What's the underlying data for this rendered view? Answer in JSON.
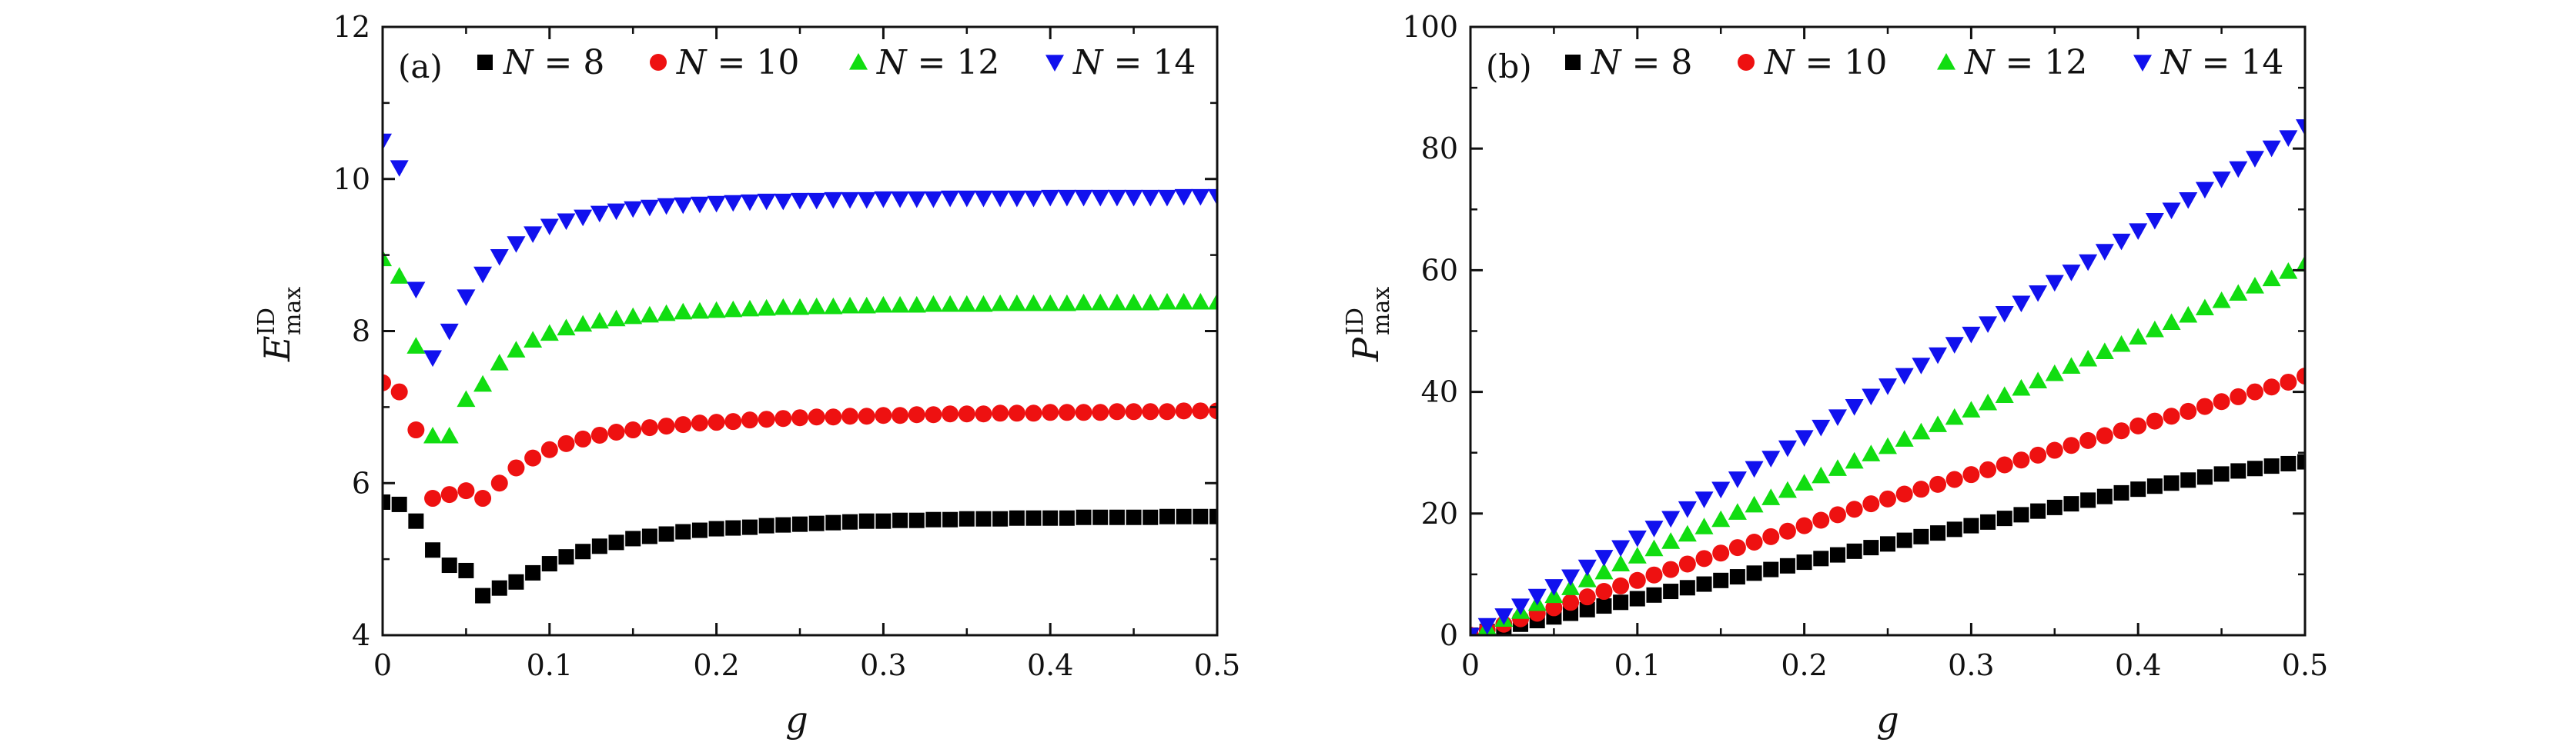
{
  "chart_data": [
    {
      "type": "scatter",
      "panel_label": "(a)",
      "xlabel": "g",
      "ylabel": {
        "base": "E",
        "sup": "ID",
        "sub": "max"
      },
      "xlim": [
        0,
        0.5
      ],
      "ylim": [
        4,
        12
      ],
      "xticks": [
        "0",
        "0.1",
        "0.2",
        "0.3",
        "0.4",
        "0.5"
      ],
      "yticks": [
        "4",
        "6",
        "8",
        "10",
        "12"
      ],
      "legend_position": "top",
      "series": [
        {
          "name": "N = 8",
          "marker": "square",
          "color": "#000000",
          "x": [
            0,
            0.01,
            0.02,
            0.03,
            0.04,
            0.05,
            0.06,
            0.07,
            0.08,
            0.09,
            0.1,
            0.11,
            0.12,
            0.13,
            0.14,
            0.15,
            0.16,
            0.17,
            0.18,
            0.19,
            0.2,
            0.21,
            0.22,
            0.23,
            0.24,
            0.25,
            0.26,
            0.27,
            0.28,
            0.29,
            0.3,
            0.31,
            0.32,
            0.33,
            0.34,
            0.35,
            0.36,
            0.37,
            0.38,
            0.39,
            0.4,
            0.41,
            0.42,
            0.43,
            0.44,
            0.45,
            0.46,
            0.47,
            0.48,
            0.49,
            0.5
          ],
          "y": [
            5.75,
            5.72,
            5.5,
            5.12,
            4.92,
            4.85,
            4.52,
            4.62,
            4.7,
            4.82,
            4.94,
            5.03,
            5.1,
            5.17,
            5.22,
            5.27,
            5.3,
            5.33,
            5.36,
            5.38,
            5.4,
            5.41,
            5.42,
            5.44,
            5.45,
            5.46,
            5.47,
            5.48,
            5.49,
            5.5,
            5.5,
            5.51,
            5.51,
            5.52,
            5.52,
            5.53,
            5.53,
            5.53,
            5.54,
            5.54,
            5.54,
            5.54,
            5.55,
            5.55,
            5.55,
            5.55,
            5.55,
            5.56,
            5.56,
            5.56,
            5.56
          ]
        },
        {
          "name": "N = 10",
          "marker": "circle",
          "color": "#ee1111",
          "x": [
            0,
            0.01,
            0.02,
            0.03,
            0.04,
            0.05,
            0.06,
            0.07,
            0.08,
            0.09,
            0.1,
            0.11,
            0.12,
            0.13,
            0.14,
            0.15,
            0.16,
            0.17,
            0.18,
            0.19,
            0.2,
            0.21,
            0.22,
            0.23,
            0.24,
            0.25,
            0.26,
            0.27,
            0.28,
            0.29,
            0.3,
            0.31,
            0.32,
            0.33,
            0.34,
            0.35,
            0.36,
            0.37,
            0.38,
            0.39,
            0.4,
            0.41,
            0.42,
            0.43,
            0.44,
            0.45,
            0.46,
            0.47,
            0.48,
            0.49,
            0.5
          ],
          "y": [
            7.32,
            7.2,
            6.7,
            5.8,
            5.85,
            5.9,
            5.8,
            6.0,
            6.2,
            6.33,
            6.44,
            6.52,
            6.58,
            6.63,
            6.67,
            6.7,
            6.73,
            6.75,
            6.77,
            6.79,
            6.8,
            6.81,
            6.83,
            6.84,
            6.85,
            6.86,
            6.87,
            6.87,
            6.88,
            6.88,
            6.89,
            6.89,
            6.9,
            6.9,
            6.91,
            6.91,
            6.91,
            6.92,
            6.92,
            6.92,
            6.93,
            6.93,
            6.93,
            6.93,
            6.94,
            6.94,
            6.94,
            6.94,
            6.95,
            6.95,
            6.95
          ]
        },
        {
          "name": "N = 12",
          "marker": "triangle-up",
          "color": "#11dd11",
          "x": [
            0,
            0.01,
            0.02,
            0.03,
            0.04,
            0.05,
            0.06,
            0.07,
            0.08,
            0.09,
            0.1,
            0.11,
            0.12,
            0.13,
            0.14,
            0.15,
            0.16,
            0.17,
            0.18,
            0.19,
            0.2,
            0.21,
            0.22,
            0.23,
            0.24,
            0.25,
            0.26,
            0.27,
            0.28,
            0.29,
            0.3,
            0.31,
            0.32,
            0.33,
            0.34,
            0.35,
            0.36,
            0.37,
            0.38,
            0.39,
            0.4,
            0.41,
            0.42,
            0.43,
            0.44,
            0.45,
            0.46,
            0.47,
            0.48,
            0.49,
            0.5
          ],
          "y": [
            8.95,
            8.72,
            7.8,
            6.62,
            6.62,
            7.1,
            7.3,
            7.58,
            7.75,
            7.88,
            7.97,
            8.04,
            8.09,
            8.13,
            8.16,
            8.19,
            8.21,
            8.23,
            8.25,
            8.26,
            8.27,
            8.28,
            8.29,
            8.3,
            8.31,
            8.31,
            8.32,
            8.32,
            8.33,
            8.33,
            8.34,
            8.34,
            8.34,
            8.35,
            8.35,
            8.35,
            8.35,
            8.36,
            8.36,
            8.36,
            8.36,
            8.36,
            8.37,
            8.37,
            8.37,
            8.37,
            8.37,
            8.38,
            8.38,
            8.38,
            8.38
          ]
        },
        {
          "name": "N = 14",
          "marker": "triangle-down",
          "color": "#1111ee",
          "x": [
            0,
            0.01,
            0.02,
            0.03,
            0.04,
            0.05,
            0.06,
            0.07,
            0.08,
            0.09,
            0.1,
            0.11,
            0.12,
            0.13,
            0.14,
            0.15,
            0.16,
            0.17,
            0.18,
            0.19,
            0.2,
            0.21,
            0.22,
            0.23,
            0.24,
            0.25,
            0.26,
            0.27,
            0.28,
            0.29,
            0.3,
            0.31,
            0.32,
            0.33,
            0.34,
            0.35,
            0.36,
            0.37,
            0.38,
            0.39,
            0.4,
            0.41,
            0.42,
            0.43,
            0.44,
            0.45,
            0.46,
            0.47,
            0.48,
            0.49,
            0.5
          ],
          "y": [
            10.5,
            10.15,
            8.55,
            7.65,
            8.0,
            8.45,
            8.75,
            8.98,
            9.15,
            9.28,
            9.38,
            9.45,
            9.5,
            9.55,
            9.58,
            9.61,
            9.63,
            9.65,
            9.66,
            9.67,
            9.68,
            9.69,
            9.7,
            9.71,
            9.71,
            9.72,
            9.72,
            9.73,
            9.73,
            9.73,
            9.74,
            9.74,
            9.74,
            9.74,
            9.75,
            9.75,
            9.75,
            9.75,
            9.75,
            9.75,
            9.76,
            9.76,
            9.76,
            9.76,
            9.76,
            9.76,
            9.76,
            9.76,
            9.77,
            9.77,
            9.77
          ]
        }
      ]
    },
    {
      "type": "scatter",
      "panel_label": "(b)",
      "xlabel": "g",
      "ylabel": {
        "base": "P",
        "sup": "ID",
        "sub": "max"
      },
      "xlim": [
        0,
        0.5
      ],
      "ylim": [
        0,
        100
      ],
      "xticks": [
        "0",
        "0.1",
        "0.2",
        "0.3",
        "0.4",
        "0.5"
      ],
      "yticks": [
        "0",
        "20",
        "40",
        "60",
        "80",
        "100"
      ],
      "legend_position": "top",
      "series": [
        {
          "name": "N = 8",
          "marker": "square",
          "color": "#000000",
          "x": [
            0,
            0.01,
            0.02,
            0.03,
            0.04,
            0.05,
            0.06,
            0.07,
            0.08,
            0.09,
            0.1,
            0.11,
            0.12,
            0.13,
            0.14,
            0.15,
            0.16,
            0.17,
            0.18,
            0.19,
            0.2,
            0.21,
            0.22,
            0.23,
            0.24,
            0.25,
            0.26,
            0.27,
            0.28,
            0.29,
            0.3,
            0.31,
            0.32,
            0.33,
            0.34,
            0.35,
            0.36,
            0.37,
            0.38,
            0.39,
            0.4,
            0.41,
            0.42,
            0.43,
            0.44,
            0.45,
            0.46,
            0.47,
            0.48,
            0.49,
            0.5
          ],
          "y": [
            0,
            0.6,
            1.2,
            1.8,
            2.4,
            3.0,
            3.6,
            4.2,
            4.8,
            5.4,
            6.0,
            6.6,
            7.2,
            7.8,
            8.4,
            9.0,
            9.6,
            10.2,
            10.8,
            11.4,
            12.0,
            12.6,
            13.2,
            13.8,
            14.4,
            15.0,
            15.6,
            16.2,
            16.8,
            17.4,
            18.0,
            18.6,
            19.2,
            19.8,
            20.4,
            21.0,
            21.6,
            22.2,
            22.8,
            23.4,
            24.0,
            24.5,
            25.0,
            25.5,
            26.0,
            26.5,
            27.0,
            27.4,
            27.8,
            28.2,
            28.5
          ]
        },
        {
          "name": "N = 10",
          "marker": "circle",
          "color": "#ee1111",
          "x": [
            0,
            0.01,
            0.02,
            0.03,
            0.04,
            0.05,
            0.06,
            0.07,
            0.08,
            0.09,
            0.1,
            0.11,
            0.12,
            0.13,
            0.14,
            0.15,
            0.16,
            0.17,
            0.18,
            0.19,
            0.2,
            0.21,
            0.22,
            0.23,
            0.24,
            0.25,
            0.26,
            0.27,
            0.28,
            0.29,
            0.3,
            0.31,
            0.32,
            0.33,
            0.34,
            0.35,
            0.36,
            0.37,
            0.38,
            0.39,
            0.4,
            0.41,
            0.42,
            0.43,
            0.44,
            0.45,
            0.46,
            0.47,
            0.48,
            0.49,
            0.5
          ],
          "y": [
            0,
            0.9,
            1.8,
            2.7,
            3.6,
            4.5,
            5.4,
            6.3,
            7.2,
            8.1,
            9.0,
            9.9,
            10.8,
            11.7,
            12.6,
            13.5,
            14.4,
            15.3,
            16.2,
            17.1,
            18.0,
            18.9,
            19.8,
            20.7,
            21.6,
            22.4,
            23.2,
            24.0,
            24.8,
            25.6,
            26.4,
            27.2,
            28.0,
            28.8,
            29.6,
            30.4,
            31.2,
            32.0,
            32.8,
            33.6,
            34.4,
            35.2,
            36.0,
            36.8,
            37.6,
            38.4,
            39.2,
            40.0,
            40.8,
            41.6,
            42.6
          ]
        },
        {
          "name": "N = 12",
          "marker": "triangle-up",
          "color": "#11dd11",
          "x": [
            0,
            0.01,
            0.02,
            0.03,
            0.04,
            0.05,
            0.06,
            0.07,
            0.08,
            0.09,
            0.1,
            0.11,
            0.12,
            0.13,
            0.14,
            0.15,
            0.16,
            0.17,
            0.18,
            0.19,
            0.2,
            0.21,
            0.22,
            0.23,
            0.24,
            0.25,
            0.26,
            0.27,
            0.28,
            0.29,
            0.3,
            0.31,
            0.32,
            0.33,
            0.34,
            0.35,
            0.36,
            0.37,
            0.38,
            0.39,
            0.4,
            0.41,
            0.42,
            0.43,
            0.44,
            0.45,
            0.46,
            0.47,
            0.48,
            0.49,
            0.5
          ],
          "y": [
            0,
            1.3,
            2.6,
            3.9,
            5.2,
            6.5,
            7.8,
            9.1,
            10.4,
            11.7,
            13.0,
            14.2,
            15.4,
            16.6,
            17.8,
            19.0,
            20.2,
            21.4,
            22.6,
            23.8,
            25.0,
            26.2,
            27.4,
            28.6,
            29.8,
            31.0,
            32.2,
            33.4,
            34.6,
            35.8,
            37.0,
            38.2,
            39.4,
            40.6,
            41.8,
            43.0,
            44.2,
            45.4,
            46.6,
            47.8,
            49.0,
            50.2,
            51.4,
            52.6,
            53.8,
            55.0,
            56.2,
            57.4,
            58.6,
            59.8,
            61.0
          ]
        },
        {
          "name": "N = 14",
          "marker": "triangle-down",
          "color": "#1111ee",
          "x": [
            0,
            0.01,
            0.02,
            0.03,
            0.04,
            0.05,
            0.06,
            0.07,
            0.08,
            0.09,
            0.1,
            0.11,
            0.12,
            0.13,
            0.14,
            0.15,
            0.16,
            0.17,
            0.18,
            0.19,
            0.2,
            0.21,
            0.22,
            0.23,
            0.24,
            0.25,
            0.26,
            0.27,
            0.28,
            0.29,
            0.3,
            0.31,
            0.32,
            0.33,
            0.34,
            0.35,
            0.36,
            0.37,
            0.38,
            0.39,
            0.4,
            0.41,
            0.42,
            0.43,
            0.44,
            0.45,
            0.46,
            0.47,
            0.48,
            0.49,
            0.5
          ],
          "y": [
            0,
            1.6,
            3.2,
            4.8,
            6.4,
            8.0,
            9.6,
            11.2,
            12.8,
            14.4,
            16.0,
            17.6,
            19.2,
            20.8,
            22.4,
            24.0,
            25.7,
            27.4,
            29.1,
            30.8,
            32.5,
            34.2,
            35.9,
            37.6,
            39.3,
            41.0,
            42.7,
            44.4,
            46.1,
            47.8,
            49.5,
            51.2,
            52.9,
            54.6,
            56.3,
            58.0,
            59.7,
            61.4,
            63.1,
            64.8,
            66.5,
            68.2,
            69.9,
            71.6,
            73.3,
            75.0,
            76.7,
            78.4,
            80.1,
            81.8,
            83.6
          ]
        }
      ]
    }
  ]
}
